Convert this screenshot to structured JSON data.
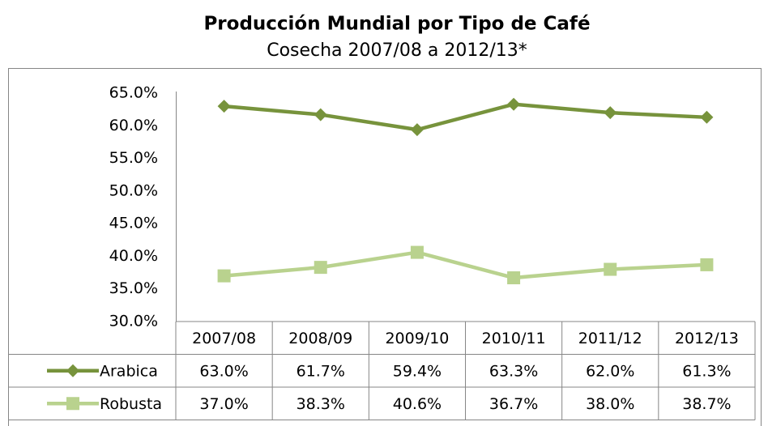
{
  "chart_data": {
    "type": "line",
    "title": "Producción Mundial por Tipo de Café",
    "subtitle": "Cosecha 2007/08 a 2012/13*",
    "categories": [
      "2007/08",
      "2008/09",
      "2009/10",
      "2010/11",
      "2011/12",
      "2012/13"
    ],
    "series": [
      {
        "name": "Arabica",
        "color": "#77933c",
        "marker": "diamond",
        "values": [
          63.0,
          61.7,
          59.4,
          63.3,
          62.0,
          61.3
        ],
        "value_labels": [
          "63.0%",
          "61.7%",
          "59.4%",
          "63.3%",
          "62.0%",
          "61.3%"
        ]
      },
      {
        "name": "Robusta",
        "color": "#b9d28e",
        "marker": "square",
        "values": [
          37.0,
          38.3,
          40.6,
          36.7,
          38.0,
          38.7
        ],
        "value_labels": [
          "37.0%",
          "38.3%",
          "40.6%",
          "36.7%",
          "38.0%",
          "38.7%"
        ]
      }
    ],
    "ylim": [
      30,
      65
    ],
    "yticks": [
      {
        "value": 30,
        "label": "30.0%"
      },
      {
        "value": 35,
        "label": "35.0%"
      },
      {
        "value": 40,
        "label": "40.0%"
      },
      {
        "value": 45,
        "label": "45.0%"
      },
      {
        "value": 50,
        "label": "50.0%"
      },
      {
        "value": 55,
        "label": "55.0%"
      },
      {
        "value": 60,
        "label": "60.0%"
      },
      {
        "value": 65,
        "label": "65.0%"
      }
    ],
    "grid": false,
    "data_table": true
  }
}
